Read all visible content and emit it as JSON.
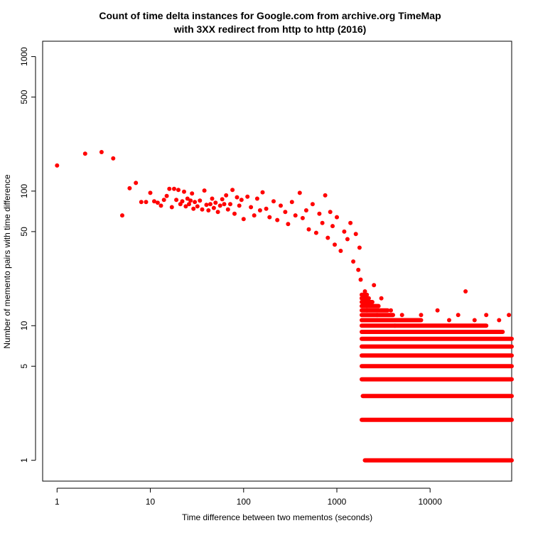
{
  "chart_data": {
    "type": "scatter",
    "title_line1": "Count of time delta instances for Google.com from archive.org TimeMap",
    "title_line2": "with 3XX redirect from http to http (2016)",
    "xlabel": "Time difference between two mementos (seconds)",
    "ylabel": "Number of memento pairs with time difference",
    "x_scale": "log",
    "y_scale": "log",
    "xlim": [
      0.7,
      75000
    ],
    "ylim": [
      0.7,
      1300
    ],
    "x_ticks": [
      1,
      10,
      100,
      1000,
      10000
    ],
    "x_tick_labels": [
      "1",
      "10",
      "100",
      "1000",
      "10000"
    ],
    "y_ticks": [
      1,
      5,
      10,
      50,
      100,
      500,
      1000
    ],
    "y_tick_labels": [
      "1",
      "5",
      "10",
      "50",
      "100",
      "500",
      "1000"
    ],
    "point_color": "#ff0000",
    "grid": false,
    "legend": "none",
    "points": [
      [
        1,
        155
      ],
      [
        2,
        190
      ],
      [
        3,
        195
      ],
      [
        4,
        175
      ],
      [
        5,
        66
      ],
      [
        6,
        105
      ],
      [
        7,
        115
      ],
      [
        8,
        83
      ],
      [
        9,
        83
      ],
      [
        10,
        97
      ],
      [
        11,
        84
      ],
      [
        12,
        82
      ],
      [
        13,
        78
      ],
      [
        14,
        86
      ],
      [
        15,
        92
      ],
      [
        16,
        104
      ],
      [
        17,
        76
      ],
      [
        18,
        104
      ],
      [
        19,
        86
      ],
      [
        20,
        102
      ],
      [
        21,
        80
      ],
      [
        22,
        84
      ],
      [
        23,
        99
      ],
      [
        24,
        77
      ],
      [
        25,
        88
      ],
      [
        26,
        80
      ],
      [
        27,
        85
      ],
      [
        28,
        96
      ],
      [
        29,
        74
      ],
      [
        30,
        83
      ],
      [
        32,
        77
      ],
      [
        34,
        85
      ],
      [
        36,
        73
      ],
      [
        38,
        101
      ],
      [
        40,
        79
      ],
      [
        42,
        72
      ],
      [
        44,
        80
      ],
      [
        46,
        88
      ],
      [
        48,
        75
      ],
      [
        50,
        82
      ],
      [
        53,
        70
      ],
      [
        56,
        78
      ],
      [
        59,
        87
      ],
      [
        62,
        80
      ],
      [
        65,
        93
      ],
      [
        68,
        73
      ],
      [
        72,
        80
      ],
      [
        76,
        102
      ],
      [
        80,
        68
      ],
      [
        85,
        90
      ],
      [
        90,
        78
      ],
      [
        95,
        86
      ],
      [
        100,
        62
      ],
      [
        110,
        91
      ],
      [
        120,
        76
      ],
      [
        130,
        66
      ],
      [
        140,
        88
      ],
      [
        150,
        72
      ],
      [
        160,
        98
      ],
      [
        175,
        74
      ],
      [
        190,
        64
      ],
      [
        210,
        84
      ],
      [
        230,
        61
      ],
      [
        250,
        78
      ],
      [
        280,
        70
      ],
      [
        300,
        57
      ],
      [
        330,
        83
      ],
      [
        360,
        66
      ],
      [
        400,
        97
      ],
      [
        430,
        63
      ],
      [
        470,
        72
      ],
      [
        500,
        52
      ],
      [
        550,
        80
      ],
      [
        600,
        49
      ],
      [
        650,
        68
      ],
      [
        700,
        58
      ],
      [
        750,
        93
      ],
      [
        800,
        45
      ],
      [
        850,
        70
      ],
      [
        900,
        55
      ],
      [
        950,
        40
      ],
      [
        1000,
        64
      ],
      [
        1100,
        36
      ],
      [
        1200,
        50
      ],
      [
        1300,
        44
      ],
      [
        1400,
        58
      ],
      [
        1500,
        30
      ],
      [
        1600,
        48
      ],
      [
        1700,
        26
      ],
      [
        1750,
        38
      ],
      [
        1800,
        22
      ],
      [
        1850,
        16
      ],
      [
        1900,
        14
      ],
      [
        2000,
        18
      ],
      [
        2100,
        13
      ],
      [
        2300,
        15
      ],
      [
        2500,
        20
      ],
      [
        2700,
        12
      ],
      [
        3000,
        16
      ],
      [
        3300,
        11
      ],
      [
        3800,
        13
      ],
      [
        4200,
        10
      ],
      [
        5000,
        12
      ],
      [
        6000,
        11
      ],
      [
        8000,
        12
      ],
      [
        12000,
        13
      ],
      [
        16000,
        11
      ],
      [
        20000,
        12
      ],
      [
        24000,
        18
      ],
      [
        30000,
        11
      ],
      [
        40000,
        12
      ],
      [
        55000,
        11
      ],
      [
        70000,
        12
      ]
    ],
    "bands": [
      {
        "y": 1,
        "x_start": 2000,
        "x_end": 75000
      },
      {
        "y": 2,
        "x_start": 1850,
        "x_end": 75000
      },
      {
        "y": 3,
        "x_start": 1900,
        "x_end": 75000
      },
      {
        "y": 4,
        "x_start": 1850,
        "x_end": 75000
      },
      {
        "y": 5,
        "x_start": 1850,
        "x_end": 75000
      },
      {
        "y": 6,
        "x_start": 1850,
        "x_end": 75000
      },
      {
        "y": 7,
        "x_start": 1850,
        "x_end": 75000
      },
      {
        "y": 8,
        "x_start": 1850,
        "x_end": 75000
      },
      {
        "y": 9,
        "x_start": 1850,
        "x_end": 60000
      },
      {
        "y": 10,
        "x_start": 1850,
        "x_end": 40000
      },
      {
        "y": 11,
        "x_start": 1850,
        "x_end": 8000
      },
      {
        "y": 12,
        "x_start": 1850,
        "x_end": 4000
      },
      {
        "y": 13,
        "x_start": 1850,
        "x_end": 3500
      },
      {
        "y": 14,
        "x_start": 1850,
        "x_end": 2800
      },
      {
        "y": 15,
        "x_start": 1850,
        "x_end": 2400
      },
      {
        "y": 16,
        "x_start": 1850,
        "x_end": 2200
      },
      {
        "y": 17,
        "x_start": 1850,
        "x_end": 2100
      }
    ]
  }
}
